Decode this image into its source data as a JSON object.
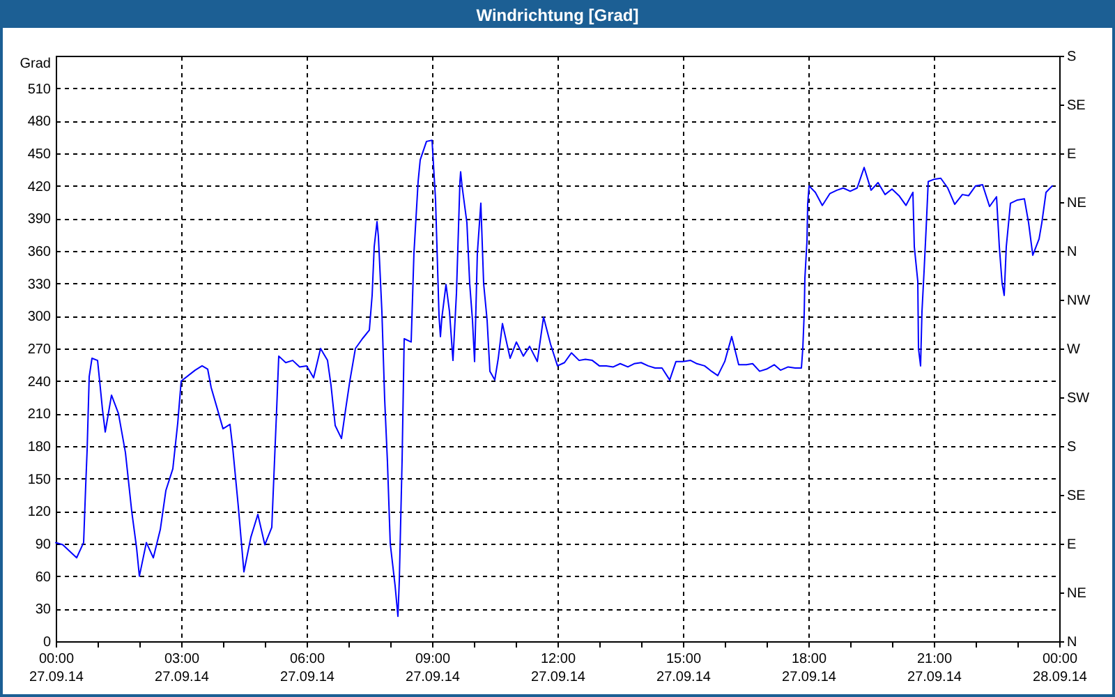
{
  "chart_data": {
    "type": "line",
    "title": "Windrichtung [Grad]",
    "ylabel": "Grad",
    "color": "#0000ff",
    "x": [
      "--09-27T00:00",
      "--09-27T00:10",
      "--09-27T00:30",
      "--09-27T00:40",
      "--09-27T00:43",
      "--09-27T00:45",
      "--09-27T00:48",
      "--09-27T00:52",
      "--09-27T01:00",
      "--09-27T01:03",
      "--09-27T01:07",
      "--09-27T01:11",
      "--09-27T01:20",
      "--09-27T01:30",
      "--09-27T01:40",
      "--09-27T01:49",
      "--09-27T01:56",
      "--09-27T02:00",
      "--09-27T02:10",
      "--09-27T02:20",
      "--09-27T02:30",
      "--09-27T02:38",
      "--09-27T02:48",
      "--09-27T02:55",
      "--09-27T03:00",
      "--09-27T03:20",
      "--09-27T03:30",
      "--09-27T03:38",
      "--09-27T03:43",
      "--09-27T03:52",
      "--09-27T04:00",
      "--09-27T04:10",
      "--09-27T04:14",
      "--09-27T04:22",
      "--09-27T04:30",
      "--09-27T04:40",
      "--09-27T04:50",
      "--09-27T05:00",
      "--09-27T05:10",
      "--09-27T05:13",
      "--09-27T05:17",
      "--09-27T05:20",
      "--09-27T05:30",
      "--09-27T05:40",
      "--09-27T05:50",
      "--09-27T06:00",
      "--09-27T06:10",
      "--09-27T06:20",
      "--09-27T06:30",
      "--09-27T06:35",
      "--09-27T06:41",
      "--09-27T06:50",
      "--09-27T06:56",
      "--09-27T07:02",
      "--09-27T07:10",
      "--09-27T07:20",
      "--09-27T07:30",
      "--09-27T07:34",
      "--09-27T07:37",
      "--09-27T07:41",
      "--09-27T07:43",
      "--09-27T07:48",
      "--09-27T07:52",
      "--09-27T07:56",
      "--09-27T08:00",
      "--09-27T08:07",
      "--09-27T08:11",
      "--09-27T08:13",
      "--09-27T08:17",
      "--09-27T08:20",
      "--09-27T08:30",
      "--09-27T08:34",
      "--09-27T08:40",
      "--09-27T08:43",
      "--09-27T08:52",
      "--09-27T09:00",
      "--09-27T09:05",
      "--09-27T09:10",
      "--09-27T09:12",
      "--09-27T09:14",
      "--09-27T09:20",
      "--09-27T09:25",
      "--09-27T09:30",
      "--09-27T09:35",
      "--09-27T09:40",
      "--09-27T09:41",
      "--09-27T09:43",
      "--09-27T09:50",
      "--09-27T09:54",
      "--09-27T09:58",
      "--09-27T10:01",
      "--09-27T10:05",
      "--09-27T10:10",
      "--09-27T10:14",
      "--09-27T10:19",
      "--09-27T10:23",
      "--09-27T10:30",
      "--09-27T10:35",
      "--09-27T10:41",
      "--09-27T10:52",
      "--09-27T11:01",
      "--09-27T11:11",
      "--09-27T11:20",
      "--09-27T11:31",
      "--09-27T11:40",
      "--09-27T11:50",
      "--09-27T12:00",
      "--09-27T12:10",
      "--09-27T12:20",
      "--09-27T12:31",
      "--09-27T12:40",
      "--09-27T12:50",
      "--09-27T13:00",
      "--09-27T13:10",
      "--09-27T13:20",
      "--09-27T13:30",
      "--09-27T13:41",
      "--09-27T13:50",
      "--09-27T14:00",
      "--09-27T14:10",
      "--09-27T14:20",
      "--09-27T14:30",
      "--09-27T14:41",
      "--09-27T14:50",
      "--09-27T15:00",
      "--09-27T15:11",
      "--09-27T15:20",
      "--09-27T15:31",
      "--09-27T15:41",
      "--09-27T15:50",
      "--09-27T16:00",
      "--09-27T16:10",
      "--09-27T16:20",
      "--09-27T16:31",
      "--09-27T16:40",
      "--09-27T16:50",
      "--09-27T17:00",
      "--09-27T17:11",
      "--09-27T17:20",
      "--09-27T17:31",
      "--09-27T17:41",
      "--09-27T17:50",
      "--09-27T17:52",
      "--09-27T17:54",
      "--09-27T17:55",
      "--09-27T17:58",
      "--09-27T17:59",
      "--09-27T18:01",
      "--09-27T18:10",
      "--09-27T18:20",
      "--09-27T18:31",
      "--09-27T18:41",
      "--09-27T18:50",
      "--09-27T19:00",
      "--09-27T19:10",
      "--09-27T19:20",
      "--09-27T19:30",
      "--09-27T19:40",
      "--09-27T19:50",
      "--09-27T20:00",
      "--09-27T20:10",
      "--09-27T20:20",
      "--09-27T20:30",
      "--09-27T20:32",
      "--09-27T20:37",
      "--09-27T20:38",
      "--09-27T20:41",
      "--09-27T20:43",
      "--09-27T20:46",
      "--09-27T20:49",
      "--09-27T20:52",
      "--09-27T21:00",
      "--09-27T21:10",
      "--09-27T21:20",
      "--09-27T21:30",
      "--09-27T21:41",
      "--09-27T21:50",
      "--09-27T22:00",
      "--09-27T22:10",
      "--09-27T22:20",
      "--09-27T22:30",
      "--09-27T22:34",
      "--09-27T22:38",
      "--09-27T22:41",
      "--09-27T22:44",
      "--09-27T22:50",
      "--09-27T23:00",
      "--09-27T23:10",
      "--09-27T23:16",
      "--09-27T23:22",
      "--09-27T23:31",
      "--09-27T23:35",
      "--09-27T23:41",
      "--09-27T23:50"
    ],
    "values": [
      91,
      89,
      77,
      91,
      144,
      176,
      244,
      261,
      259,
      240,
      214,
      193,
      227,
      210,
      174,
      120,
      86,
      60,
      91,
      77,
      103,
      139,
      159,
      201,
      240,
      250,
      254,
      251,
      234,
      214,
      196,
      200,
      178,
      124,
      64,
      96,
      117,
      89,
      105,
      152,
      214,
      263,
      257,
      259,
      253,
      254,
      243,
      270,
      259,
      236,
      199,
      187,
      214,
      240,
      270,
      279,
      287,
      319,
      364,
      387,
      373,
      304,
      223,
      165,
      90,
      51,
      23,
      56,
      167,
      279,
      276,
      358,
      424,
      444,
      461,
      462,
      407,
      300,
      281,
      298,
      329,
      304,
      259,
      321,
      424,
      433,
      420,
      386,
      330,
      296,
      258,
      358,
      404,
      330,
      296,
      249,
      241,
      261,
      293,
      261,
      276,
      263,
      272,
      258,
      299,
      274,
      254,
      257,
      266,
      259,
      260,
      259,
      254,
      254,
      253,
      256,
      253,
      256,
      257,
      254,
      252,
      252,
      241,
      258,
      258,
      259,
      256,
      254,
      249,
      245,
      258,
      281,
      255,
      255,
      256,
      249,
      251,
      255,
      250,
      253,
      252,
      252,
      270,
      302,
      335,
      369,
      403,
      420,
      414,
      402,
      413,
      416,
      418,
      415,
      418,
      437,
      416,
      423,
      412,
      417,
      411,
      402,
      414,
      364,
      332,
      270,
      254,
      304,
      341,
      381,
      424,
      426,
      427,
      418,
      403,
      412,
      411,
      420,
      421,
      401,
      410,
      364,
      330,
      319,
      364,
      404,
      407,
      408,
      386,
      356,
      371,
      386,
      414,
      420
    ],
    "xlim": [
      "--09-27T00:00",
      "--09-28T00:00"
    ],
    "xticks": [
      {
        "value": "--09-27T00:00",
        "label": "00:00\n27.09.14"
      },
      {
        "value": "--09-27T01:00",
        "label": null
      },
      {
        "value": "--09-27T02:00",
        "label": null
      },
      {
        "value": "--09-27T03:00",
        "label": "03:00\n27.09.14"
      },
      {
        "value": "--09-27T04:00",
        "label": null
      },
      {
        "value": "--09-27T05:00",
        "label": null
      },
      {
        "value": "--09-27T06:00",
        "label": "06:00\n27.09.14"
      },
      {
        "value": "--09-27T07:00",
        "label": null
      },
      {
        "value": "--09-27T08:00",
        "label": null
      },
      {
        "value": "--09-27T09:00",
        "label": "09:00\n27.09.14"
      },
      {
        "value": "--09-27T10:00",
        "label": null
      },
      {
        "value": "--09-27T11:00",
        "label": null
      },
      {
        "value": "--09-27T12:00",
        "label": "12:00\n27.09.14"
      },
      {
        "value": "--09-27T13:00",
        "label": null
      },
      {
        "value": "--09-27T14:00",
        "label": null
      },
      {
        "value": "--09-27T15:00",
        "label": "15:00\n27.09.14"
      },
      {
        "value": "--09-27T16:00",
        "label": null
      },
      {
        "value": "--09-27T17:00",
        "label": null
      },
      {
        "value": "--09-27T18:00",
        "label": "18:00\n27.09.14"
      },
      {
        "value": "--09-27T19:00",
        "label": null
      },
      {
        "value": "--09-27T20:00",
        "label": null
      },
      {
        "value": "--09-27T21:00",
        "label": "21:00\n27.09.14"
      },
      {
        "value": "--09-27T22:00",
        "label": null
      },
      {
        "value": "--09-27T23:00",
        "label": null
      },
      {
        "value": "--09-28T00:00",
        "label": "00:00\n28.09.14"
      }
    ],
    "ylim": [
      0,
      540
    ],
    "yticks": [
      0,
      30,
      60,
      90,
      120,
      150,
      180,
      210,
      240,
      270,
      300,
      330,
      360,
      390,
      420,
      450,
      480,
      510
    ],
    "y2_categories": [
      "S",
      "SE",
      "E",
      "NE",
      "N",
      "NW",
      "W",
      "SW",
      "S",
      "SE",
      "E",
      "NE",
      "N"
    ],
    "grid": true
  }
}
